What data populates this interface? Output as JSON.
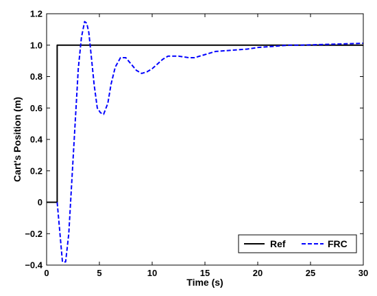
{
  "chart_data": {
    "type": "line",
    "title": "",
    "xlabel": "Time (s)",
    "ylabel": "Cart's Position (m)",
    "xlim": [
      0,
      30
    ],
    "ylim": [
      -0.4,
      1.2
    ],
    "xticks": [
      0,
      5,
      10,
      15,
      20,
      25,
      30
    ],
    "xtick_labels": [
      "0",
      "5",
      "10",
      "15",
      "20",
      "25",
      "30"
    ],
    "yticks": [
      -0.4,
      -0.2,
      0,
      0.2,
      0.4,
      0.6,
      0.8,
      1.0,
      1.2
    ],
    "ytick_labels": [
      "−0.4",
      "−0.2",
      "0",
      "0.2",
      "0.4",
      "0.6",
      "0.8",
      "1.0",
      "1.2"
    ],
    "grid": false,
    "legend_position": "bottom-right",
    "series": [
      {
        "name": "Ref",
        "style": "solid",
        "color": "#000000",
        "x": [
          0,
          1,
          1,
          30
        ],
        "y": [
          0,
          0,
          1,
          1
        ]
      },
      {
        "name": "FRC",
        "style": "dashed",
        "color": "#0000ff",
        "x": [
          1.0,
          1.2,
          1.5,
          1.8,
          2.1,
          2.4,
          2.7,
          3.0,
          3.3,
          3.6,
          3.8,
          4.0,
          4.2,
          4.5,
          4.8,
          5.1,
          5.4,
          5.8,
          6.1,
          6.5,
          7.0,
          7.5,
          8.0,
          8.5,
          9.0,
          9.5,
          10.0,
          10.5,
          11.0,
          11.5,
          12.0,
          12.5,
          13.0,
          13.5,
          14.0,
          14.5,
          15.0,
          15.5,
          16.0,
          17.0,
          18.0,
          19.0,
          20.0,
          21.0,
          22.0,
          23.0,
          24.0,
          25.0,
          26.0,
          27.0,
          28.0,
          29.0,
          30.0
        ],
        "y": [
          0.0,
          -0.15,
          -0.38,
          -0.38,
          -0.2,
          0.15,
          0.5,
          0.85,
          1.05,
          1.15,
          1.14,
          1.08,
          0.95,
          0.75,
          0.6,
          0.57,
          0.56,
          0.63,
          0.75,
          0.86,
          0.92,
          0.92,
          0.88,
          0.84,
          0.82,
          0.83,
          0.85,
          0.88,
          0.91,
          0.93,
          0.93,
          0.93,
          0.925,
          0.92,
          0.92,
          0.93,
          0.94,
          0.95,
          0.96,
          0.965,
          0.97,
          0.975,
          0.985,
          0.99,
          0.995,
          1.0,
          1.0,
          1.002,
          1.004,
          1.006,
          1.008,
          1.01,
          1.012
        ]
      }
    ]
  }
}
